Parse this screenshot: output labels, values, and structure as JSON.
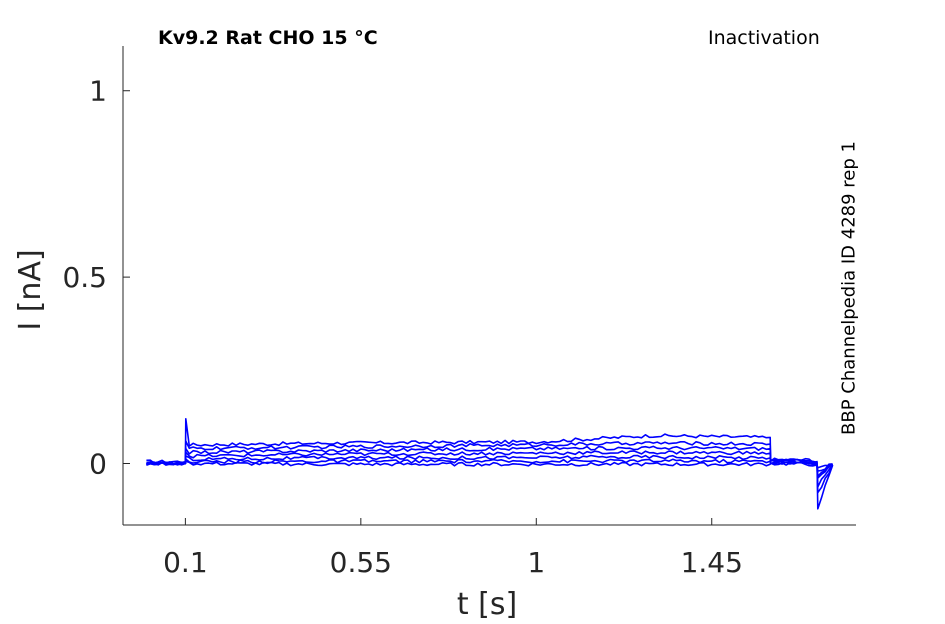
{
  "header": {
    "title": "Kv9.2  Rat  CHO  15 °C",
    "protocol": "Inactivation",
    "source": "BBP Channelpedia ID 4289 rep 1"
  },
  "colors": {
    "trace": "#0000ff",
    "axis": "#262626"
  },
  "chart_data": {
    "type": "line",
    "title": "Kv9.2  Rat  CHO  15 °C",
    "xlabel": "t [s]",
    "ylabel": "I [nA]",
    "xlim": [
      -0.06,
      1.82
    ],
    "ylim": [
      -0.165,
      1.12
    ],
    "xticks": [
      0.1,
      0.55,
      1,
      1.45
    ],
    "xtick_labels": [
      "0.1",
      "0.55",
      "1",
      "1.45"
    ],
    "yticks": [
      0,
      0.5,
      1
    ],
    "ytick_labels": [
      "0",
      "0.5",
      "1"
    ],
    "grid": false,
    "legend": "none",
    "annotation": "BBP Channelpedia ID 4289 rep 1",
    "series": [
      {
        "x": [
          0.0,
          0.1,
          0.101,
          0.11,
          0.5,
          1.0,
          1.3,
          1.6,
          1.601,
          1.7,
          1.72,
          1.722,
          1.76
        ],
        "y": [
          0.005,
          0.005,
          0.12,
          0.05,
          0.055,
          0.058,
          0.075,
          0.07,
          0.01,
          0.01,
          0.005,
          -0.12,
          -0.005
        ]
      },
      {
        "x": [
          0.0,
          0.1,
          0.101,
          0.11,
          0.5,
          1.0,
          1.3,
          1.6,
          1.601,
          1.7,
          1.72,
          1.722,
          1.76
        ],
        "y": [
          0.0,
          0.0,
          0.06,
          0.04,
          0.045,
          0.05,
          0.055,
          0.052,
          0.01,
          0.008,
          0.003,
          -0.08,
          -0.004
        ]
      },
      {
        "x": [
          0.0,
          0.1,
          0.101,
          0.11,
          0.5,
          1.0,
          1.3,
          1.6,
          1.601,
          1.7,
          1.72,
          1.722,
          1.76
        ],
        "y": [
          0.0,
          0.0,
          0.04,
          0.03,
          0.035,
          0.04,
          0.042,
          0.04,
          0.008,
          0.006,
          0.0,
          -0.06,
          -0.003
        ]
      },
      {
        "x": [
          0.0,
          0.1,
          0.101,
          0.11,
          0.5,
          1.0,
          1.3,
          1.6,
          1.601,
          1.7,
          1.72,
          1.722,
          1.76
        ],
        "y": [
          0.0,
          0.0,
          0.03,
          0.02,
          0.025,
          0.028,
          0.03,
          0.028,
          0.006,
          0.004,
          0.0,
          -0.04,
          -0.002
        ]
      },
      {
        "x": [
          0.0,
          0.1,
          0.101,
          0.11,
          0.5,
          1.0,
          1.3,
          1.6,
          1.601,
          1.7,
          1.72,
          1.722,
          1.76
        ],
        "y": [
          0.0,
          0.0,
          0.02,
          0.012,
          0.015,
          0.016,
          0.018,
          0.015,
          0.004,
          0.002,
          -0.002,
          -0.03,
          -0.002
        ]
      },
      {
        "x": [
          0.0,
          0.1,
          0.101,
          0.11,
          0.5,
          1.0,
          1.3,
          1.6,
          1.601,
          1.7,
          1.72,
          1.722,
          1.76
        ],
        "y": [
          0.0,
          0.0,
          0.012,
          0.005,
          0.006,
          0.006,
          0.007,
          0.006,
          0.002,
          0.0,
          -0.003,
          -0.02,
          -0.001
        ]
      },
      {
        "x": [
          0.0,
          0.1,
          0.101,
          0.11,
          0.5,
          1.0,
          1.3,
          1.6,
          1.601,
          1.7,
          1.72,
          1.722,
          1.76
        ],
        "y": [
          0.0,
          0.0,
          0.006,
          0.0,
          -0.002,
          -0.002,
          -0.002,
          -0.002,
          0.0,
          -0.002,
          -0.004,
          -0.015,
          -0.001
        ]
      }
    ]
  }
}
